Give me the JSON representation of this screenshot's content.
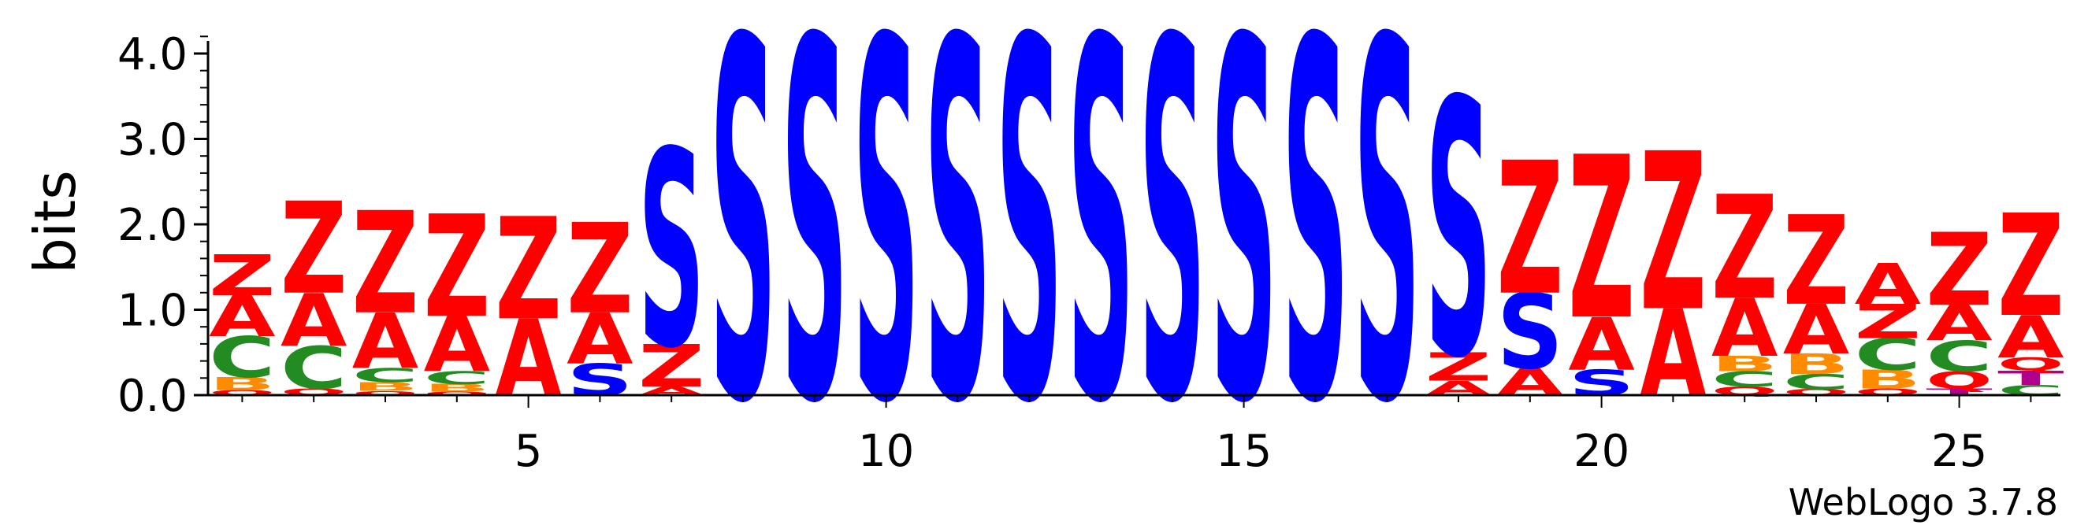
{
  "chart_data": {
    "type": "sequence-logo",
    "ylabel": "bits",
    "ylim": [
      0,
      4.3
    ],
    "yticks": [
      "0.0",
      "1.0",
      "2.0",
      "3.0",
      "4.0"
    ],
    "xticks": [
      "5",
      "10",
      "15",
      "20",
      "25"
    ],
    "footer": "WebLogo 3.7.8",
    "colors": {
      "Z": "#ff0000",
      "A": "#ff0000",
      "S": "#0000ff",
      "C": "#228b22",
      "B": "#ff8c00",
      "Q": "#ff0000",
      "T": "#b0008c"
    },
    "positions": [
      {
        "pos": 1,
        "stack": [
          [
            "Q",
            0.06
          ],
          [
            "B",
            0.15
          ],
          [
            "C",
            0.48
          ],
          [
            "A",
            0.48
          ],
          [
            "Z",
            0.48
          ]
        ]
      },
      {
        "pos": 2,
        "stack": [
          [
            "Q",
            0.08
          ],
          [
            "C",
            0.5
          ],
          [
            "A",
            0.62
          ],
          [
            "Z",
            1.08
          ]
        ]
      },
      {
        "pos": 3,
        "stack": [
          [
            "Q",
            0.05
          ],
          [
            "B",
            0.1
          ],
          [
            "C",
            0.17
          ],
          [
            "A",
            0.65
          ],
          [
            "Z",
            1.2
          ]
        ]
      },
      {
        "pos": 4,
        "stack": [
          [
            "Q",
            0.04
          ],
          [
            "B",
            0.09
          ],
          [
            "C",
            0.15
          ],
          [
            "A",
            0.65
          ],
          [
            "Z",
            1.2
          ]
        ]
      },
      {
        "pos": 5,
        "stack": [
          [
            "A",
            0.9
          ],
          [
            "Z",
            1.2
          ]
        ]
      },
      {
        "pos": 6,
        "stack": [
          [
            "S",
            0.37
          ],
          [
            "A",
            0.6
          ],
          [
            "Z",
            1.06
          ]
        ]
      },
      {
        "pos": 7,
        "stack": [
          [
            "A",
            0.1
          ],
          [
            "Z",
            0.5
          ],
          [
            "S",
            2.3
          ]
        ]
      },
      {
        "pos": 8,
        "stack": [
          [
            "S",
            4.22
          ]
        ]
      },
      {
        "pos": 9,
        "stack": [
          [
            "S",
            4.22
          ]
        ]
      },
      {
        "pos": 10,
        "stack": [
          [
            "S",
            4.22
          ]
        ]
      },
      {
        "pos": 11,
        "stack": [
          [
            "S",
            4.22
          ]
        ]
      },
      {
        "pos": 12,
        "stack": [
          [
            "S",
            4.22
          ]
        ]
      },
      {
        "pos": 13,
        "stack": [
          [
            "S",
            4.22
          ]
        ]
      },
      {
        "pos": 14,
        "stack": [
          [
            "S",
            4.22
          ]
        ]
      },
      {
        "pos": 15,
        "stack": [
          [
            "S",
            4.22
          ]
        ]
      },
      {
        "pos": 16,
        "stack": [
          [
            "S",
            4.22
          ]
        ]
      },
      {
        "pos": 17,
        "stack": [
          [
            "S",
            4.22
          ]
        ]
      },
      {
        "pos": 18,
        "stack": [
          [
            "A",
            0.17
          ],
          [
            "Z",
            0.33
          ],
          [
            "S",
            3.0
          ]
        ]
      },
      {
        "pos": 19,
        "stack": [
          [
            "A",
            0.32
          ],
          [
            "S",
            0.88
          ],
          [
            "Z",
            1.56
          ]
        ]
      },
      {
        "pos": 20,
        "stack": [
          [
            "S",
            0.3
          ],
          [
            "A",
            0.62
          ],
          [
            "Z",
            1.91
          ]
        ]
      },
      {
        "pos": 21,
        "stack": [
          [
            "A",
            1.02
          ],
          [
            "Z",
            1.85
          ]
        ]
      },
      {
        "pos": 22,
        "stack": [
          [
            "Q",
            0.1
          ],
          [
            "C",
            0.18
          ],
          [
            "B",
            0.18
          ],
          [
            "A",
            0.68
          ],
          [
            "Z",
            1.22
          ]
        ]
      },
      {
        "pos": 23,
        "stack": [
          [
            "Q",
            0.07
          ],
          [
            "C",
            0.18
          ],
          [
            "B",
            0.24
          ],
          [
            "A",
            0.58
          ],
          [
            "Z",
            1.05
          ]
        ]
      },
      {
        "pos": 24,
        "stack": [
          [
            "Q",
            0.08
          ],
          [
            "B",
            0.22
          ],
          [
            "C",
            0.37
          ],
          [
            "Z",
            0.4
          ],
          [
            "A",
            0.48
          ]
        ]
      },
      {
        "pos": 25,
        "stack": [
          [
            "T",
            0.08
          ],
          [
            "Q",
            0.2
          ],
          [
            "C",
            0.36
          ],
          [
            "A",
            0.42
          ],
          [
            "Z",
            0.85
          ]
        ]
      },
      {
        "pos": 26,
        "stack": [
          [
            "C",
            0.12
          ],
          [
            "T",
            0.17
          ],
          [
            "Q",
            0.15
          ],
          [
            "A",
            0.5
          ],
          [
            "Z",
            1.2
          ]
        ]
      }
    ]
  }
}
